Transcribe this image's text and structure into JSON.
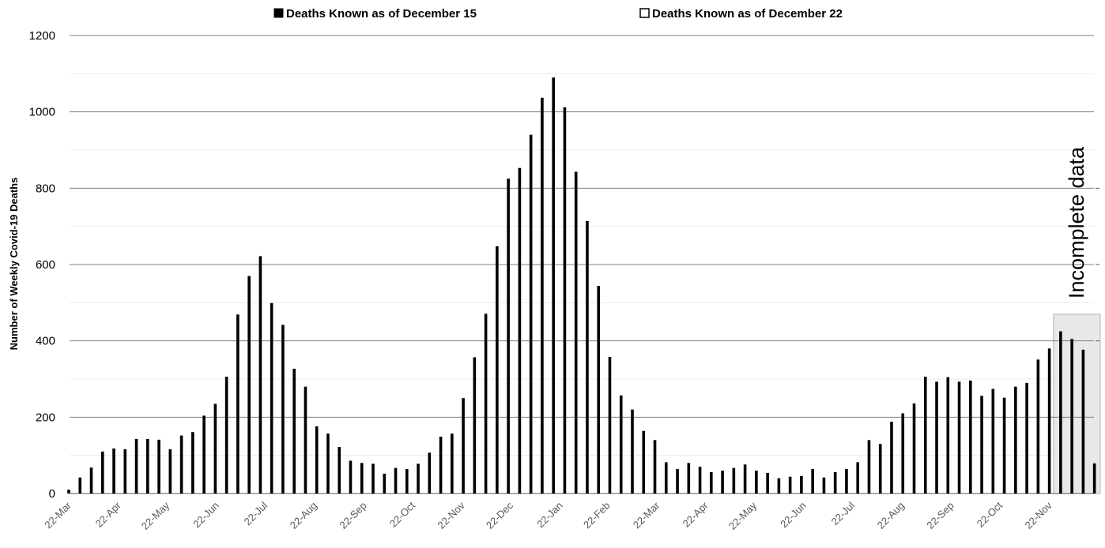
{
  "chart_data": {
    "type": "bar",
    "ylabel": "Number of Weekly Covid-19 Deaths",
    "ylim": [
      0,
      1200
    ],
    "yticks": [
      0,
      200,
      400,
      600,
      800,
      1000,
      1200
    ],
    "grid": true,
    "legend_position": "top",
    "series": [
      {
        "name": "Deaths Known as of December 15",
        "color": "#000000",
        "values": [
          10,
          42,
          68,
          110,
          118,
          116,
          143,
          143,
          141,
          116,
          152,
          161,
          204,
          235,
          306,
          469,
          570,
          622,
          499,
          442,
          327,
          280,
          176,
          157,
          122,
          86,
          80,
          78,
          52,
          67,
          64,
          78,
          107,
          149,
          157,
          250,
          357,
          471,
          648,
          825,
          853,
          940,
          1037,
          1090,
          1012,
          843,
          714,
          544,
          358,
          257,
          220,
          164,
          140,
          82,
          64,
          80,
          70,
          56,
          60,
          67,
          76,
          60,
          54,
          40,
          44,
          46,
          64,
          42,
          56,
          64,
          82,
          140,
          130,
          188,
          210,
          236,
          306,
          293,
          305,
          293,
          296,
          256,
          274,
          251,
          280,
          290,
          351,
          380,
          425,
          405,
          377,
          79
        ]
      },
      {
        "name": "Deaths Known as of December 22",
        "color": "#ffffff",
        "values": []
      }
    ],
    "x_tick_labels": [
      "22-Mar",
      "22-Apr",
      "22-May",
      "22-Jun",
      "22-Jul",
      "22-Aug",
      "22-Sep",
      "22-Oct",
      "22-Nov",
      "22-Dec",
      "22-Jan",
      "22-Feb",
      "22-Mar",
      "22-Apr",
      "22-May",
      "22-Jun",
      "22-Jul",
      "22-Aug",
      "22-Sep",
      "22-Oct",
      "22-Nov"
    ],
    "x_tick_bar_index": [
      0,
      4.4,
      8.7,
      13.1,
      17.4,
      21.8,
      26.2,
      30.5,
      34.9,
      39.2,
      43.6,
      47.8,
      52.2,
      56.5,
      60.8,
      65.2,
      69.5,
      73.9,
      78.3,
      82.6,
      87
    ],
    "annotation": {
      "text": "Incomplete data",
      "region_start_index": 88
    },
    "colors": {
      "bar": "#000000",
      "grid": "#808080",
      "minor_grid": "#ececec",
      "incomplete_region": "#e8e8e8",
      "incomplete_border": "#bfbfbf",
      "x_tick": "#595959"
    }
  }
}
